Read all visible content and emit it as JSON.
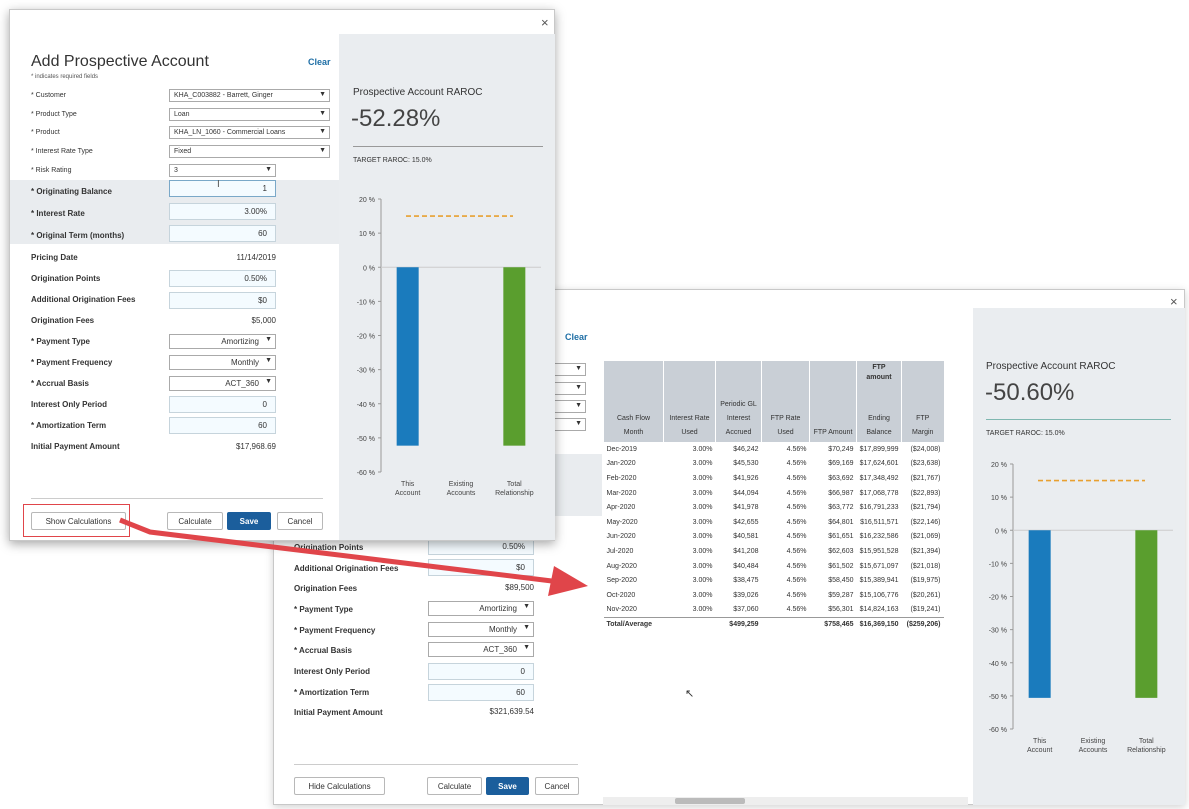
{
  "front": {
    "title": "Add Prospective Account",
    "required_note": "* indicates required fields",
    "clear": "Clear",
    "close": "×",
    "fields": {
      "customer": {
        "label": "* Customer",
        "value": "KHA_C003882 - Barrett, Ginger"
      },
      "product_type": {
        "label": "* Product Type",
        "value": "Loan"
      },
      "product": {
        "label": "* Product",
        "value": "KHA_LN_1060 - Commercial Loans"
      },
      "interest_rate_type": {
        "label": "* Interest Rate Type",
        "value": "Fixed"
      },
      "risk_rating": {
        "label": "* Risk Rating",
        "value": "3"
      },
      "originating_balance": {
        "label": "* Originating Balance",
        "value": "1"
      },
      "interest_rate": {
        "label": "* Interest Rate",
        "value": "3.00%"
      },
      "original_term": {
        "label": "* Original Term (months)",
        "value": "60"
      },
      "pricing_date": {
        "label": "Pricing Date",
        "value": "11/14/2019"
      },
      "origination_points": {
        "label": "Origination Points",
        "value": "0.50%"
      },
      "additional_origination_fees": {
        "label": "Additional Origination Fees",
        "value": "$0"
      },
      "origination_fees": {
        "label": "Origination Fees",
        "value": "$5,000"
      },
      "payment_type": {
        "label": "* Payment Type",
        "value": "Amortizing"
      },
      "payment_frequency": {
        "label": "* Payment Frequency",
        "value": "Monthly"
      },
      "accrual_basis": {
        "label": "* Accrual Basis",
        "value": "ACT_360"
      },
      "interest_only_period": {
        "label": "Interest Only Period",
        "value": "0"
      },
      "amortization_term": {
        "label": "* Amortization Term",
        "value": "60"
      },
      "initial_payment_amount": {
        "label": "Initial Payment Amount",
        "value": "$17,968.69"
      }
    },
    "buttons": {
      "show_calc": "Show Calculations",
      "calculate": "Calculate",
      "save": "Save",
      "cancel": "Cancel"
    },
    "panel": {
      "title": "Prospective Account RAROC",
      "raroc": "-52.28%",
      "target": "TARGET RAROC: 15.0%"
    }
  },
  "back": {
    "clear": "Clear",
    "close": "×",
    "fields": {
      "origination_points": {
        "label": "Origination Points",
        "value": "0.50%"
      },
      "additional_origination_fees": {
        "label": "Additional Origination Fees",
        "value": "$0"
      },
      "origination_fees": {
        "label": "Origination Fees",
        "value": "$89,500"
      },
      "payment_type": {
        "label": "* Payment Type",
        "value": "Amortizing"
      },
      "payment_frequency": {
        "label": "* Payment Frequency",
        "value": "Monthly"
      },
      "accrual_basis": {
        "label": "* Accrual Basis",
        "value": "ACT_360"
      },
      "interest_only_period": {
        "label": "Interest Only Period",
        "value": "0"
      },
      "amortization_term": {
        "label": "* Amortization Term",
        "value": "60"
      },
      "initial_payment_amount": {
        "label": "Initial Payment Amount",
        "value": "$321,639.54"
      }
    },
    "buttons": {
      "hide_calc": "Hide Calculations",
      "calculate": "Calculate",
      "save": "Save",
      "cancel": "Cancel"
    },
    "panel": {
      "title": "Prospective Account RAROC",
      "raroc": "-50.60%",
      "target": "TARGET RAROC: 15.0%"
    },
    "table": {
      "group_header": "FTP amount",
      "headers": [
        [
          "Cash Flow",
          "Month"
        ],
        [
          "Interest Rate",
          "Used"
        ],
        [
          "Periodic GL",
          "Interest",
          "Accrued"
        ],
        [
          "FTP Rate",
          "Used"
        ],
        [
          "FTP Amount"
        ],
        [
          "Ending",
          "Balance"
        ],
        [
          "FTP",
          "Margin"
        ]
      ],
      "rows": [
        [
          "Dec-2019",
          "3.00%",
          "$46,242",
          "4.56%",
          "$70,249",
          "$17,899,999",
          "($24,008)"
        ],
        [
          "Jan-2020",
          "3.00%",
          "$45,530",
          "4.56%",
          "$69,169",
          "$17,624,601",
          "($23,638)"
        ],
        [
          "Feb-2020",
          "3.00%",
          "$41,926",
          "4.56%",
          "$63,692",
          "$17,348,492",
          "($21,767)"
        ],
        [
          "Mar-2020",
          "3.00%",
          "$44,094",
          "4.56%",
          "$66,987",
          "$17,068,778",
          "($22,893)"
        ],
        [
          "Apr-2020",
          "3.00%",
          "$41,978",
          "4.56%",
          "$63,772",
          "$16,791,233",
          "($21,794)"
        ],
        [
          "May-2020",
          "3.00%",
          "$42,655",
          "4.56%",
          "$64,801",
          "$16,511,571",
          "($22,146)"
        ],
        [
          "Jun-2020",
          "3.00%",
          "$40,581",
          "4.56%",
          "$61,651",
          "$16,232,586",
          "($21,069)"
        ],
        [
          "Jul-2020",
          "3.00%",
          "$41,208",
          "4.56%",
          "$62,603",
          "$15,951,528",
          "($21,394)"
        ],
        [
          "Aug-2020",
          "3.00%",
          "$40,484",
          "4.56%",
          "$61,502",
          "$15,671,097",
          "($21,018)"
        ],
        [
          "Sep-2020",
          "3.00%",
          "$38,475",
          "4.56%",
          "$58,450",
          "$15,389,941",
          "($19,975)"
        ],
        [
          "Oct-2020",
          "3.00%",
          "$39,026",
          "4.56%",
          "$59,287",
          "$15,106,776",
          "($20,261)"
        ],
        [
          "Nov-2020",
          "3.00%",
          "$37,060",
          "4.56%",
          "$56,301",
          "$14,824,163",
          "($19,241)"
        ]
      ],
      "total": [
        "Total/Average",
        "",
        "$499,259",
        "",
        "$758,465",
        "$16,369,150",
        "($259,206)"
      ]
    }
  },
  "chart_front": {
    "type": "bar",
    "categories": [
      [
        "This",
        "Account"
      ],
      [
        "Existing",
        "Accounts"
      ],
      [
        "Total",
        "Relationship"
      ]
    ],
    "values": [
      -52.28,
      null,
      -52.28
    ],
    "colors": [
      "#1a7bbd",
      null,
      "#5a9e2e"
    ],
    "target": 15,
    "target_color": "#e8a030",
    "ylim": [
      -60,
      20
    ],
    "yticks": [
      20,
      10,
      0,
      -10,
      -20,
      -30,
      -40,
      -50,
      -60
    ],
    "tick_suffix": " %"
  },
  "chart_back": {
    "type": "bar",
    "categories": [
      [
        "This",
        "Account"
      ],
      [
        "Existing",
        "Accounts"
      ],
      [
        "Total",
        "Relationship"
      ]
    ],
    "values": [
      -50.6,
      null,
      -50.6
    ],
    "colors": [
      "#1a7bbd",
      null,
      "#5a9e2e"
    ],
    "target": 15,
    "target_color": "#e8a030",
    "ylim": [
      -60,
      20
    ],
    "yticks": [
      20,
      10,
      0,
      -10,
      -20,
      -30,
      -40,
      -50,
      -60
    ],
    "tick_suffix": " %"
  },
  "annotation": {
    "arrow_color": "#e0454a",
    "highlight_color": "#e0454a"
  }
}
